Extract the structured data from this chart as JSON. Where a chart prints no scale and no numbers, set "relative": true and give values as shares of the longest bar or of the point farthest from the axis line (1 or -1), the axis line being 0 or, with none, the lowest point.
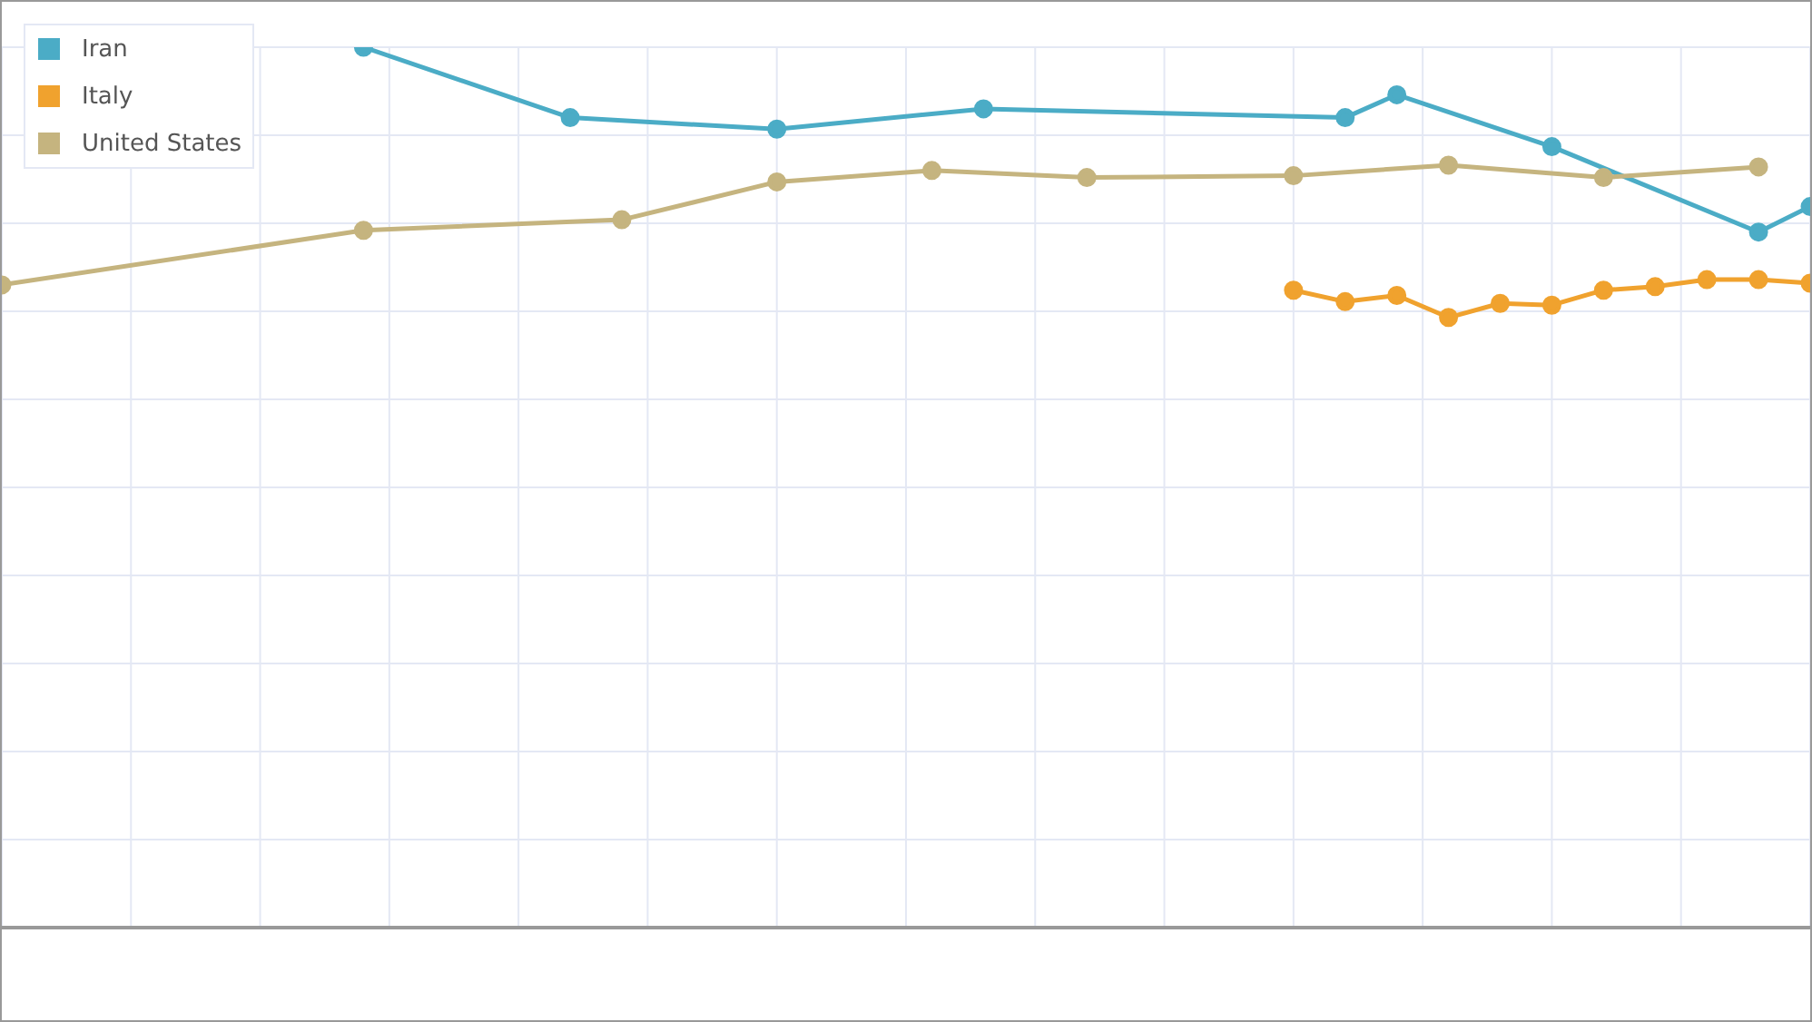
{
  "chart_data": {
    "type": "line",
    "relative": true,
    "categories": [
      null,
      null,
      null,
      null,
      null,
      null,
      null,
      null,
      null,
      null,
      null,
      null,
      null,
      null,
      null,
      null,
      null,
      null,
      null,
      null,
      null,
      null,
      null,
      null,
      null,
      null,
      null,
      null,
      null,
      null,
      null,
      null,
      null,
      null,
      null,
      null
    ],
    "series": [
      {
        "name": "Iran",
        "color": "#4bacc6",
        "values": [
          null,
          null,
          null,
          null,
          null,
          null,
          null,
          1,
          null,
          null,
          null,
          0.92,
          null,
          null,
          null,
          0.907,
          null,
          null,
          null,
          0.93,
          null,
          null,
          null,
          null,
          null,
          null,
          0.92,
          0.946,
          null,
          null,
          0.887,
          null,
          null,
          null,
          0.79,
          0.819
        ]
      },
      {
        "name": "Italy",
        "color": "#f0a22e",
        "values": [
          null,
          null,
          null,
          null,
          null,
          null,
          null,
          null,
          null,
          null,
          null,
          null,
          null,
          null,
          null,
          null,
          null,
          null,
          null,
          null,
          null,
          null,
          null,
          null,
          null,
          0.724,
          0.711,
          0.718,
          0.693,
          0.709,
          0.707,
          0.724,
          0.728,
          0.736,
          0.736,
          0.732
        ]
      },
      {
        "name": "United States",
        "color": "#c5b47f",
        "values": [
          0.73,
          null,
          null,
          null,
          null,
          null,
          null,
          0.792,
          null,
          null,
          null,
          null,
          0.804,
          null,
          null,
          0.847,
          null,
          null,
          0.86,
          null,
          null,
          0.852,
          null,
          null,
          null,
          0.854,
          null,
          null,
          0.866,
          null,
          null,
          0.852,
          null,
          null,
          0.864,
          null
        ]
      }
    ],
    "grid": true,
    "legend": "top left",
    "marker": "circle",
    "line_style": "solid"
  }
}
